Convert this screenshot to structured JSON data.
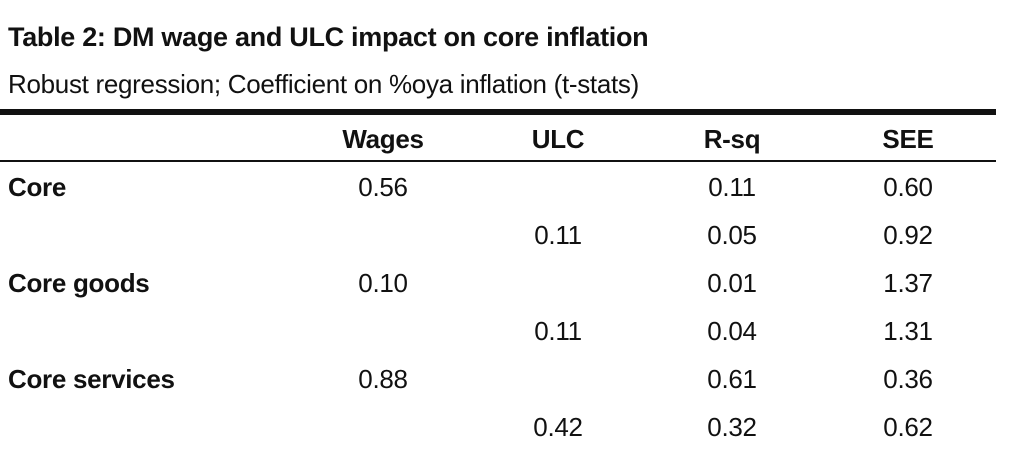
{
  "title": "Table 2: DM wage and ULC impact on core inflation",
  "subtitle": "Robust regression; Coefficient on %oya inflation (t-stats)",
  "columns": [
    "Wages",
    "ULC",
    "R-sq",
    "SEE"
  ],
  "rows": [
    {
      "label": "Core",
      "wages": "0.56",
      "ulc": "",
      "rsq": "0.11",
      "see": "0.60"
    },
    {
      "label": "",
      "wages": "",
      "ulc": "0.11",
      "rsq": "0.05",
      "see": "0.92"
    },
    {
      "label": "Core goods",
      "wages": "0.10",
      "ulc": "",
      "rsq": "0.01",
      "see": "1.37"
    },
    {
      "label": "",
      "wages": "",
      "ulc": "0.11",
      "rsq": "0.04",
      "see": "1.31"
    },
    {
      "label": "Core services",
      "wages": "0.88",
      "ulc": "",
      "rsq": "0.61",
      "see": "0.36"
    },
    {
      "label": "",
      "wages": "",
      "ulc": "0.42",
      "rsq": "0.32",
      "see": "0.62"
    }
  ]
}
